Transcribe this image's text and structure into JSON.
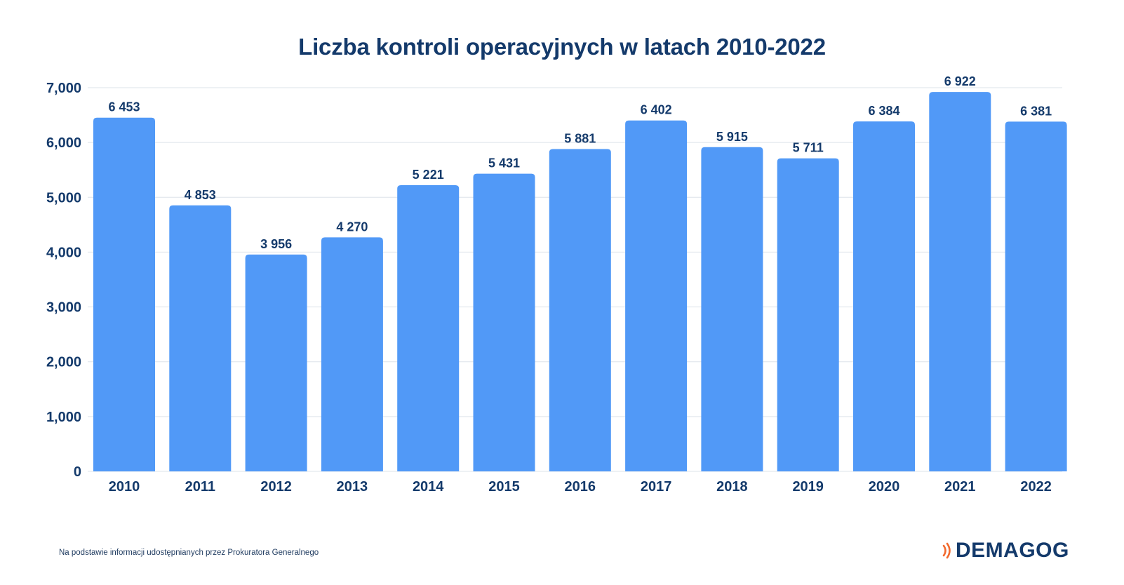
{
  "chart_data": {
    "type": "bar",
    "title": "Liczba kontroli operacyjnych w latach 2010-2022",
    "categories": [
      "2010",
      "2011",
      "2012",
      "2013",
      "2014",
      "2015",
      "2016",
      "2017",
      "2018",
      "2019",
      "2020",
      "2021",
      "2022"
    ],
    "values": [
      6453,
      4853,
      3956,
      4270,
      5221,
      5431,
      5881,
      6402,
      5915,
      5711,
      6384,
      6922,
      6381
    ],
    "value_labels": [
      "6 453",
      "4 853",
      "3 956",
      "4 270",
      "5 221",
      "5 431",
      "5 881",
      "6 402",
      "5 915",
      "5 711",
      "6 384",
      "6 922",
      "6 381"
    ],
    "ylim": [
      0,
      7000
    ],
    "yticks": [
      0,
      1000,
      2000,
      3000,
      4000,
      5000,
      6000,
      7000
    ],
    "ytick_labels": [
      "0",
      "1,000",
      "2,000",
      "3,000",
      "4,000",
      "5,000",
      "6,000",
      "7,000"
    ],
    "xlabel": "",
    "ylabel": "",
    "grid": true,
    "legend": "none"
  },
  "colors": {
    "bar": "#5199f7",
    "text": "#143a6b",
    "grid": "#dde3ea",
    "brand_accent": "#f26a2e"
  },
  "footer": {
    "source": "Na podstawie informacji udostępnianych przez Prokuratora Generalnego",
    "brand": "DEMAGOG",
    "brand_icon": "signal-waves-icon"
  }
}
